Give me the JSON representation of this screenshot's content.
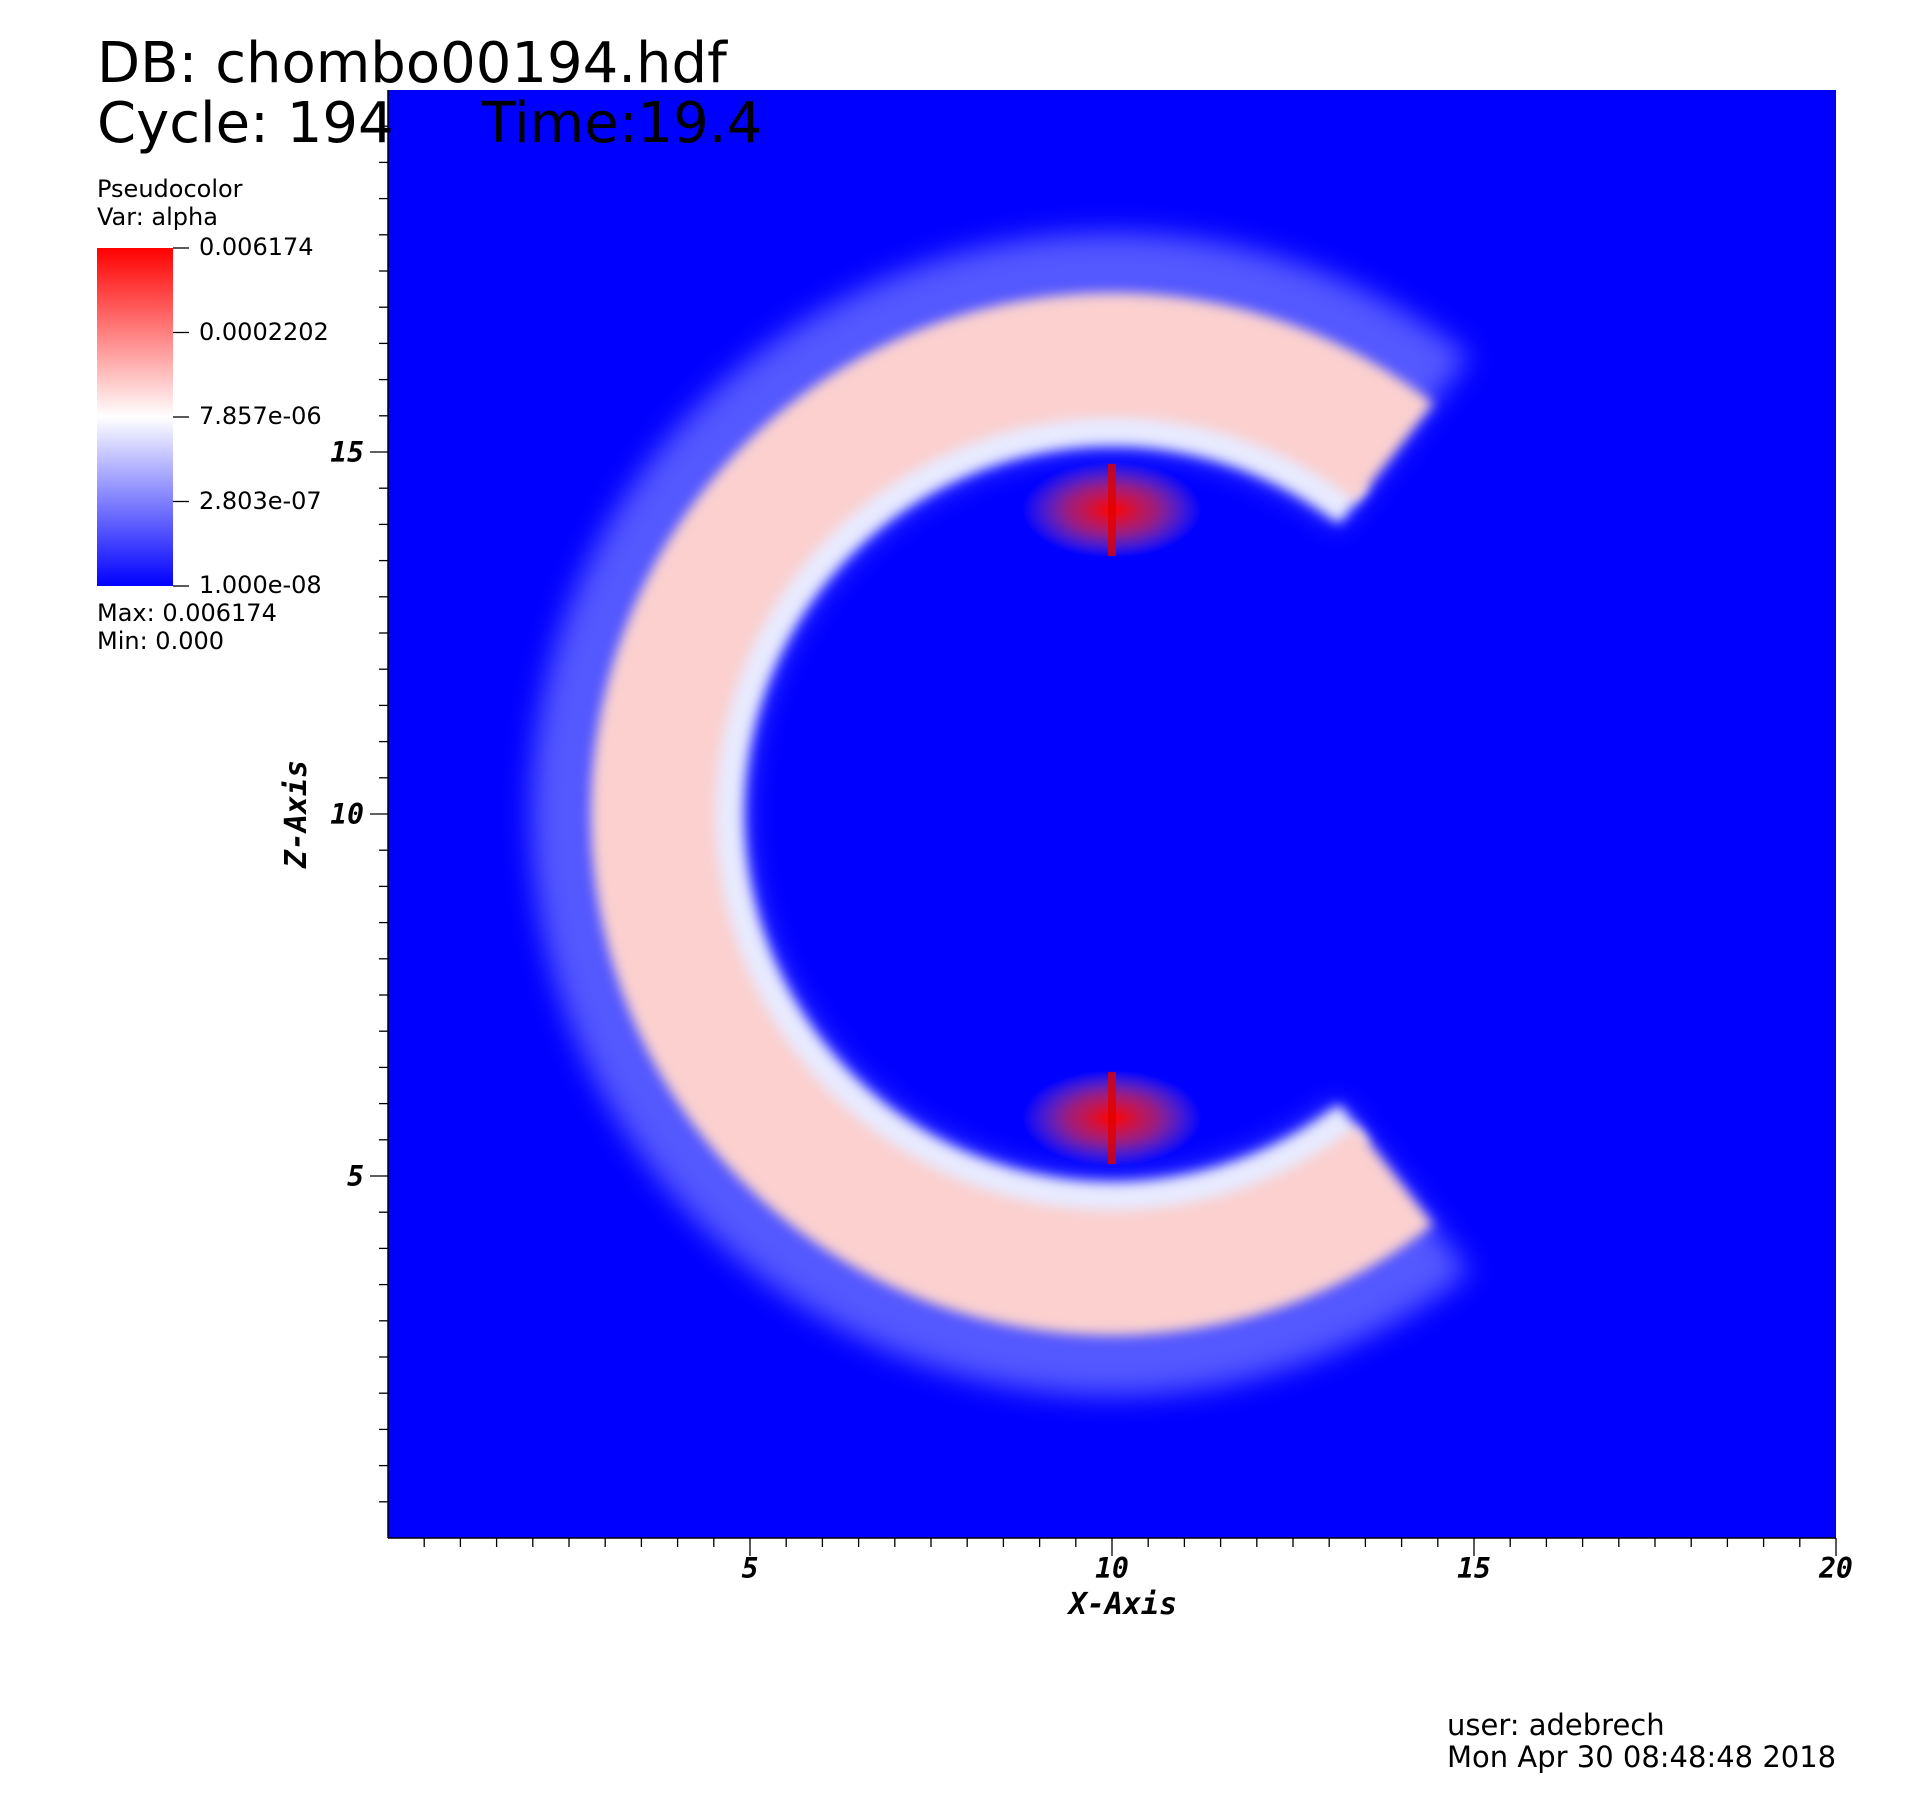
{
  "header": {
    "db_label": "DB: chombo00194.hdf",
    "cycle_label": "Cycle: 194",
    "time_label": "Time:19.4"
  },
  "legend": {
    "plot_type": "Pseudocolor",
    "var_label": "Var: alpha",
    "ticks": [
      "0.006174",
      "0.0002202",
      "7.857e-06",
      "2.803e-07",
      "1.000e-08"
    ],
    "max_label": "Max:  0.006174",
    "min_label": "Min:  0.000",
    "colors": {
      "low": "#0000ff",
      "mid": "#ffffff",
      "high": "#ff0000"
    }
  },
  "footer": {
    "user": "user: adebrech",
    "timestamp": "Mon Apr 30 08:48:48 2018"
  },
  "chart_data": {
    "type": "heatmap",
    "title": "",
    "variable": "alpha",
    "scale": "log",
    "xlabel": "X-Axis",
    "ylabel": "Z-Axis",
    "xlim": [
      0,
      20
    ],
    "ylim": [
      0,
      20
    ],
    "xticks": [
      5,
      10,
      15,
      20
    ],
    "xtick_labels": [
      "5",
      "10",
      "15",
      "20"
    ],
    "yticks": [
      5,
      10,
      15
    ],
    "ytick_labels": [
      "5",
      "10",
      "15"
    ],
    "value_range": [
      1e-08,
      0.006174
    ],
    "background_color": "#0000ff",
    "features": {
      "crescent_center": [
        10,
        10
      ],
      "outer_radius": 7.2,
      "inner_radius": 5.2,
      "arc_extent_deg": [
        -128,
        128
      ],
      "peak_locations": [
        [
          10,
          14.2
        ],
        [
          10,
          5.8
        ]
      ]
    },
    "grid": false
  }
}
